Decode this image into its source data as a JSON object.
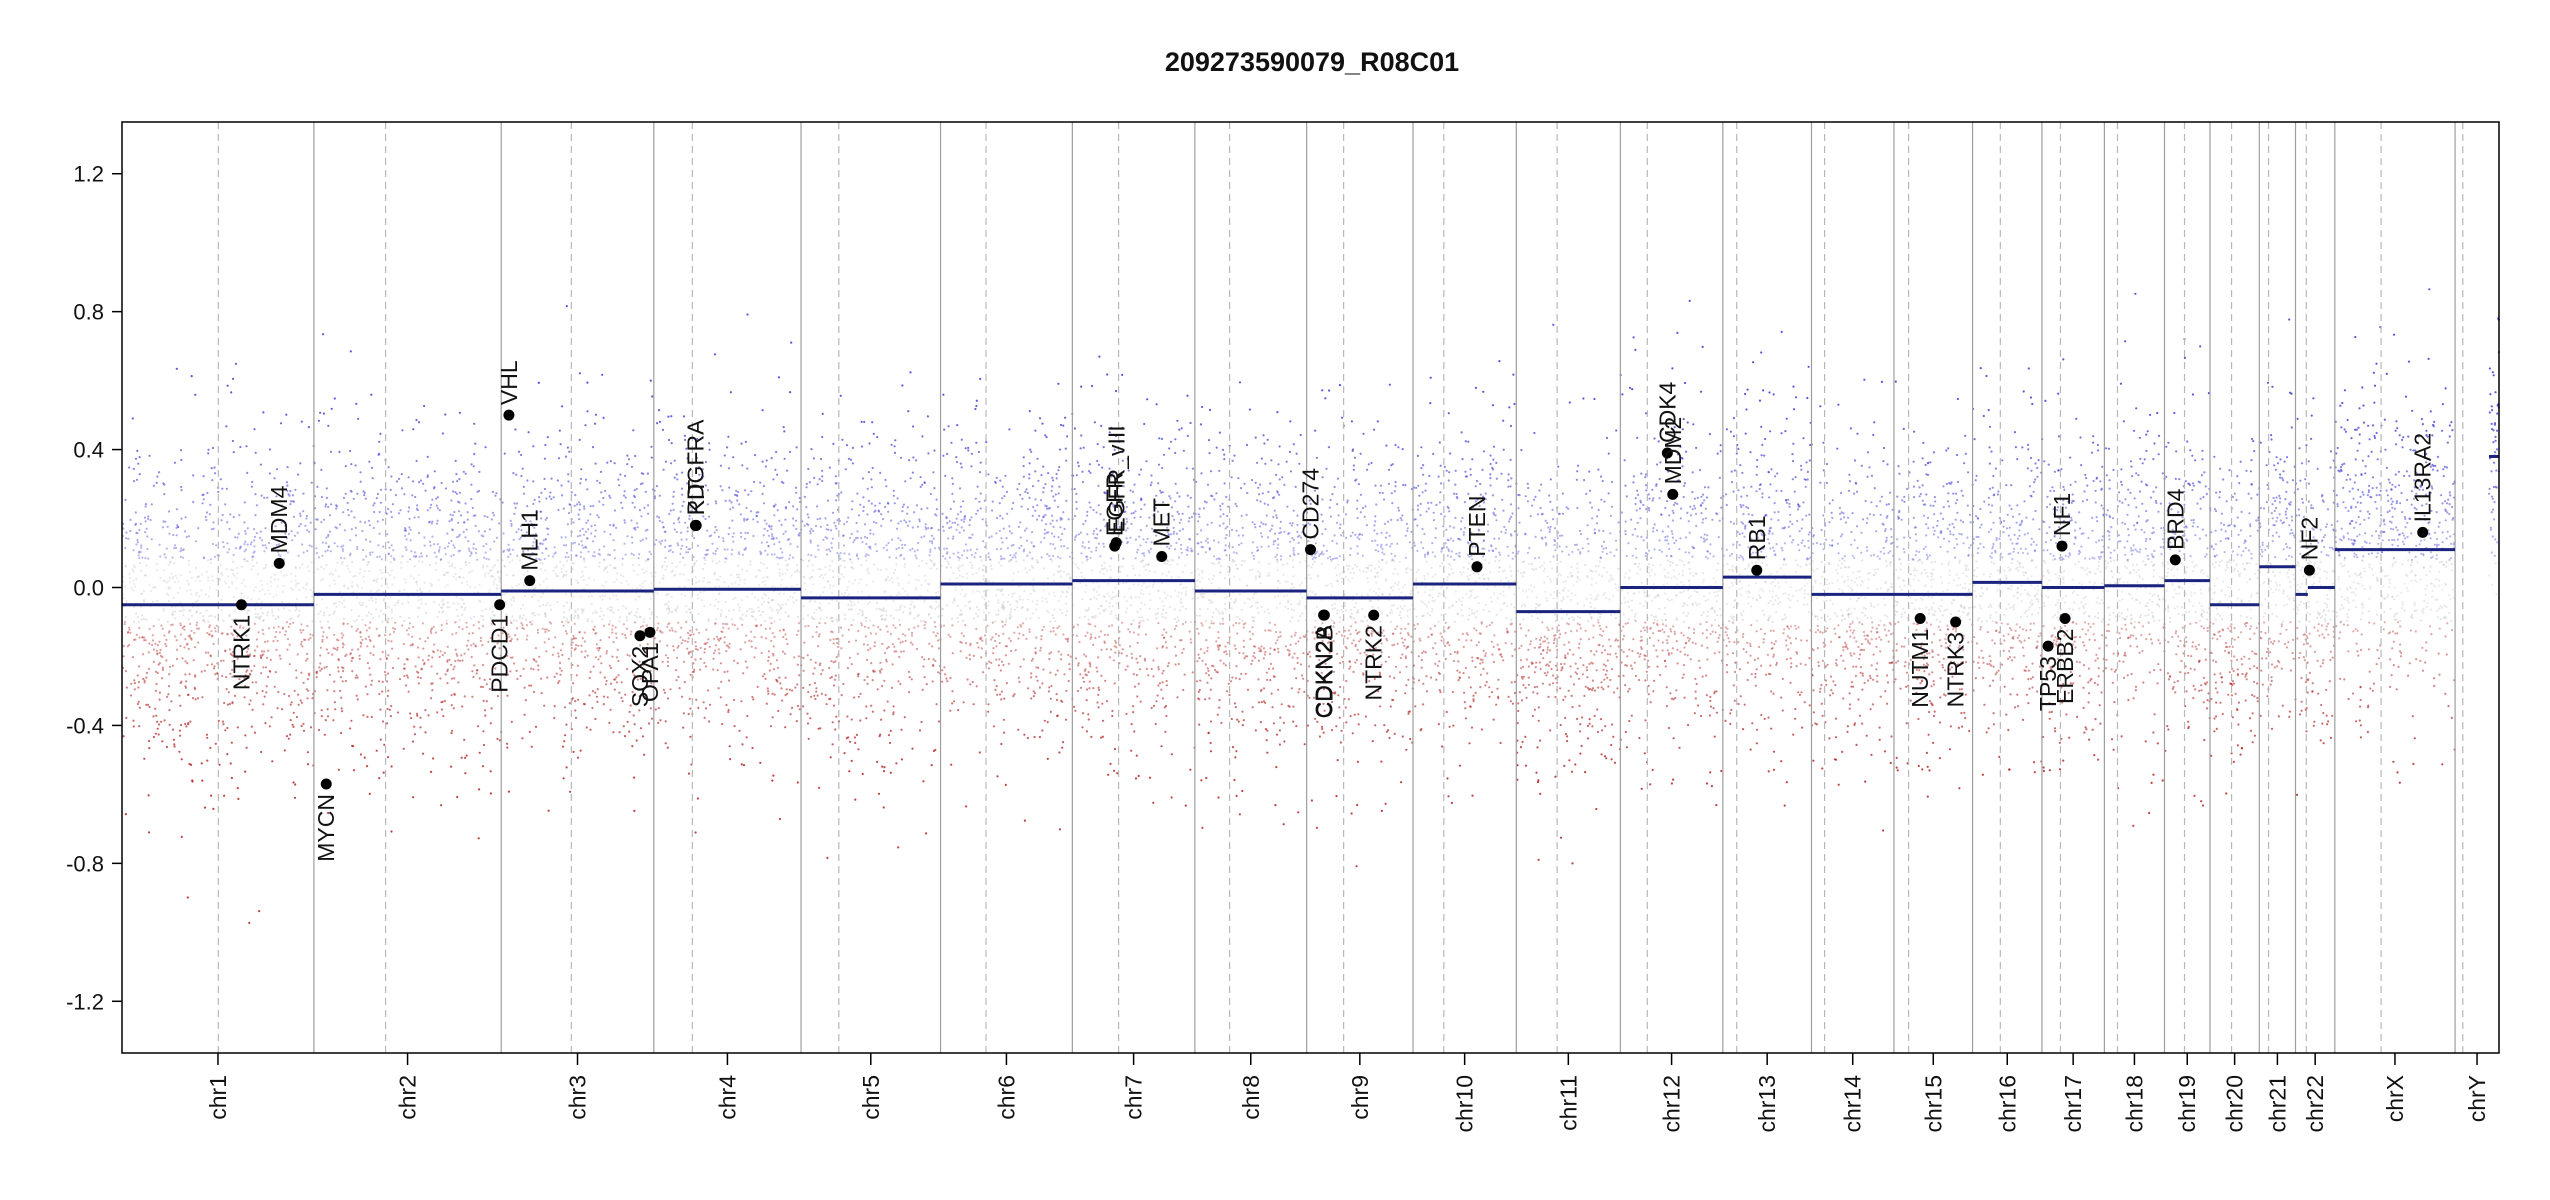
{
  "chart_data": {
    "type": "scatter",
    "title": "209273590079_R08C01",
    "xlabel": "",
    "ylabel": "",
    "ylim": [
      -1.35,
      1.35
    ],
    "yticks": [
      -1.2,
      -0.8,
      -0.4,
      0.0,
      0.4,
      0.8,
      1.2
    ],
    "ytick_labels": [
      "-1.2",
      "-0.8",
      "-0.4",
      "0.0",
      "0.4",
      "0.8",
      "1.2"
    ],
    "grid": false,
    "legend": "none",
    "colors": {
      "gain": "#3a3ad0",
      "loss": "#b02020",
      "neutral": "#b0b0b0",
      "segment": "#1a237e",
      "point": "#000000"
    },
    "chromosomes": [
      {
        "name": "chr1",
        "start": 0,
        "end": 249,
        "centromere": 125,
        "segments": [
          {
            "from": 0,
            "to": 249,
            "value": -0.05
          }
        ]
      },
      {
        "name": "chr2",
        "start": 249,
        "end": 492,
        "centromere": 342,
        "segments": [
          {
            "from": 249,
            "to": 492,
            "value": -0.02
          }
        ]
      },
      {
        "name": "chr3",
        "start": 492,
        "end": 690,
        "centromere": 583,
        "segments": [
          {
            "from": 492,
            "to": 690,
            "value": -0.01
          }
        ]
      },
      {
        "name": "chr4",
        "start": 690,
        "end": 881,
        "centromere": 740,
        "segments": [
          {
            "from": 690,
            "to": 881,
            "value": -0.005
          }
        ]
      },
      {
        "name": "chr5",
        "start": 881,
        "end": 1062,
        "centromere": 930,
        "segments": [
          {
            "from": 881,
            "to": 1062,
            "value": -0.03
          }
        ]
      },
      {
        "name": "chr6",
        "start": 1062,
        "end": 1233,
        "centromere": 1121,
        "segments": [
          {
            "from": 1062,
            "to": 1233,
            "value": 0.01
          }
        ]
      },
      {
        "name": "chr7",
        "start": 1233,
        "end": 1392,
        "centromere": 1293,
        "segments": [
          {
            "from": 1233,
            "to": 1392,
            "value": 0.02
          }
        ]
      },
      {
        "name": "chr8",
        "start": 1392,
        "end": 1537,
        "centromere": 1437,
        "segments": [
          {
            "from": 1392,
            "to": 1537,
            "value": -0.01
          }
        ]
      },
      {
        "name": "chr9",
        "start": 1537,
        "end": 1675,
        "centromere": 1585,
        "segments": [
          {
            "from": 1537,
            "to": 1675,
            "value": -0.03
          }
        ]
      },
      {
        "name": "chr10",
        "start": 1675,
        "end": 1809,
        "centromere": 1715,
        "segments": [
          {
            "from": 1675,
            "to": 1809,
            "value": 0.01
          }
        ]
      },
      {
        "name": "chr11",
        "start": 1809,
        "end": 1944,
        "centromere": 1862,
        "segments": [
          {
            "from": 1809,
            "to": 1944,
            "value": -0.07
          }
        ]
      },
      {
        "name": "chr12",
        "start": 1944,
        "end": 2077,
        "centromere": 1979,
        "segments": [
          {
            "from": 1944,
            "to": 2077,
            "value": 0.0
          }
        ]
      },
      {
        "name": "chr13",
        "start": 2077,
        "end": 2192,
        "centromere": 2095,
        "segments": [
          {
            "from": 2077,
            "to": 2192,
            "value": 0.03
          }
        ]
      },
      {
        "name": "chr14",
        "start": 2192,
        "end": 2299,
        "centromere": 2209,
        "segments": [
          {
            "from": 2192,
            "to": 2299,
            "value": -0.02
          }
        ]
      },
      {
        "name": "chr15",
        "start": 2299,
        "end": 2401,
        "centromere": 2318,
        "segments": [
          {
            "from": 2299,
            "to": 2401,
            "value": -0.02
          }
        ]
      },
      {
        "name": "chr16",
        "start": 2401,
        "end": 2491,
        "centromere": 2437,
        "segments": [
          {
            "from": 2401,
            "to": 2491,
            "value": 0.015
          }
        ]
      },
      {
        "name": "chr17",
        "start": 2491,
        "end": 2572,
        "centromere": 2515,
        "segments": [
          {
            "from": 2491,
            "to": 2572,
            "value": 0.0
          }
        ]
      },
      {
        "name": "chr18",
        "start": 2572,
        "end": 2650,
        "centromere": 2589,
        "segments": [
          {
            "from": 2572,
            "to": 2650,
            "value": 0.005
          }
        ]
      },
      {
        "name": "chr19",
        "start": 2650,
        "end": 2709,
        "centromere": 2676,
        "segments": [
          {
            "from": 2650,
            "to": 2709,
            "value": 0.02
          }
        ]
      },
      {
        "name": "chr20",
        "start": 2709,
        "end": 2773,
        "centromere": 2737,
        "segments": [
          {
            "from": 2709,
            "to": 2773,
            "value": -0.05
          }
        ]
      },
      {
        "name": "chr21",
        "start": 2773,
        "end": 2820,
        "centromere": 2785,
        "segments": [
          {
            "from": 2773,
            "to": 2820,
            "value": 0.06
          }
        ]
      },
      {
        "name": "chr22",
        "start": 2820,
        "end": 2871,
        "centromere": 2834,
        "segments": [
          {
            "from": 2820,
            "to": 2836,
            "value": -0.02
          },
          {
            "from": 2836,
            "to": 2871,
            "value": 0.0
          }
        ]
      },
      {
        "name": "chrX",
        "start": 2871,
        "end": 3027,
        "centromere": 2931,
        "segments": [
          {
            "from": 2871,
            "to": 3027,
            "value": 0.11
          }
        ]
      },
      {
        "name": "chrY",
        "start": 3027,
        "end": 3084,
        "centromere": 3037,
        "segments": [
          {
            "from": 3071,
            "to": 3084,
            "value": 0.38
          }
        ]
      }
    ],
    "genes": [
      {
        "name": "NTRK1",
        "x": 155,
        "y": -0.05,
        "side": "below"
      },
      {
        "name": "MDM4",
        "x": 204,
        "y": 0.07,
        "side": "above"
      },
      {
        "name": "MYCN",
        "x": 265,
        "y": -0.57,
        "side": "below"
      },
      {
        "name": "PDCD1",
        "x": 490,
        "y": -0.05,
        "side": "below"
      },
      {
        "name": "VHL",
        "x": 502,
        "y": 0.5,
        "side": "above"
      },
      {
        "name": "MLH1",
        "x": 529,
        "y": 0.02,
        "side": "above"
      },
      {
        "name": "SOX2",
        "x": 672,
        "y": -0.14,
        "side": "below"
      },
      {
        "name": "OPA1",
        "x": 685,
        "y": -0.13,
        "side": "below"
      },
      {
        "name": "KIT",
        "x": 745,
        "y": 0.18,
        "side": "above"
      },
      {
        "name": "PDGFRA",
        "x": 744,
        "y": 0.18,
        "side": "above"
      },
      {
        "name": "EGFR",
        "x": 1288,
        "y": 0.12,
        "side": "above"
      },
      {
        "name": "EGFR_vIII",
        "x": 1290,
        "y": 0.13,
        "side": "above"
      },
      {
        "name": "MET",
        "x": 1349,
        "y": 0.09,
        "side": "above"
      },
      {
        "name": "CD274",
        "x": 1542,
        "y": 0.11,
        "side": "above"
      },
      {
        "name": "CDKN2A",
        "x": 1559,
        "y": -0.08,
        "side": "below"
      },
      {
        "name": "CDKN2B",
        "x": 1560,
        "y": -0.08,
        "side": "below"
      },
      {
        "name": "NTRK2",
        "x": 1624,
        "y": -0.08,
        "side": "below"
      },
      {
        "name": "PTEN",
        "x": 1758,
        "y": 0.06,
        "side": "above"
      },
      {
        "name": "CDK4",
        "x": 2005,
        "y": 0.39,
        "side": "above"
      },
      {
        "name": "MDM2",
        "x": 2012,
        "y": 0.27,
        "side": "above"
      },
      {
        "name": "RB1",
        "x": 2121,
        "y": 0.05,
        "side": "above"
      },
      {
        "name": "NUTM1",
        "x": 2333,
        "y": -0.09,
        "side": "below"
      },
      {
        "name": "NTRK3",
        "x": 2379,
        "y": -0.1,
        "side": "below"
      },
      {
        "name": "TP53",
        "x": 2499,
        "y": -0.17,
        "side": "below"
      },
      {
        "name": "NF1",
        "x": 2517,
        "y": 0.12,
        "side": "above"
      },
      {
        "name": "ERBB2",
        "x": 2521,
        "y": -0.09,
        "side": "below"
      },
      {
        "name": "BRD4",
        "x": 2664,
        "y": 0.08,
        "side": "above"
      },
      {
        "name": "NF2",
        "x": 2838,
        "y": 0.05,
        "side": "above"
      },
      {
        "name": "IL13RA2",
        "x": 2985,
        "y": 0.16,
        "side": "above"
      }
    ]
  }
}
